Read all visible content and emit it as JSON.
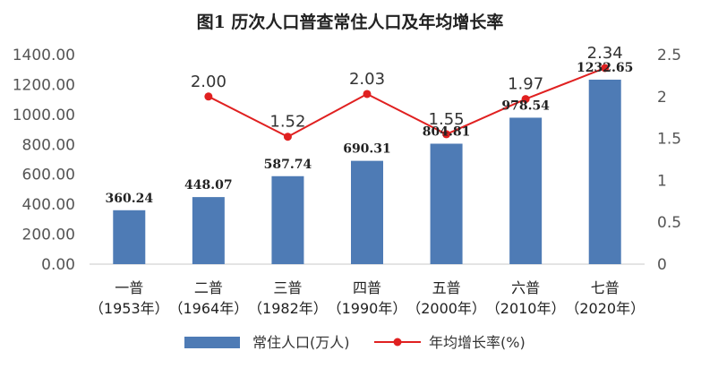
{
  "chart_data": {
    "type": "bar",
    "title": "图1  历次人口普查常住人口及年均增长率",
    "categories": [
      "一普",
      "二普",
      "三普",
      "四普",
      "五普",
      "六普",
      "七普"
    ],
    "category_years": [
      "（1953年）",
      "（1964年）",
      "（1982年）",
      "（1990年）",
      "（2000年）",
      "（2010年）",
      "（2020年）"
    ],
    "series": [
      {
        "name": "常住人口(万人)",
        "type": "bar",
        "axis": "left",
        "color": "#4e7bb5",
        "values": [
          360.24,
          448.07,
          587.74,
          690.31,
          804.81,
          978.54,
          1232.65
        ],
        "labels": [
          "360.24",
          "448.07",
          "587.74",
          "690.31",
          "804.81",
          "978.54",
          "1232.65"
        ]
      },
      {
        "name": "年均增长率(%)",
        "type": "line",
        "axis": "right",
        "color": "#e02020",
        "values": [
          null,
          2.0,
          1.52,
          2.03,
          1.55,
          1.97,
          2.34
        ],
        "labels": [
          "",
          "2.00",
          "1.52",
          "2.03",
          "1.55",
          "1.97",
          "2.34"
        ]
      }
    ],
    "y_left": {
      "lim": [
        0,
        1400
      ],
      "ticks": [
        "0.00",
        "200.00",
        "400.00",
        "600.00",
        "800.00",
        "1000.00",
        "1200.00",
        "1400.00"
      ]
    },
    "y_right": {
      "lim": [
        0,
        2.5
      ],
      "ticks": [
        "0",
        "0.5",
        "1",
        "1.5",
        "2",
        "2.5"
      ]
    },
    "legend_position": "bottom"
  }
}
